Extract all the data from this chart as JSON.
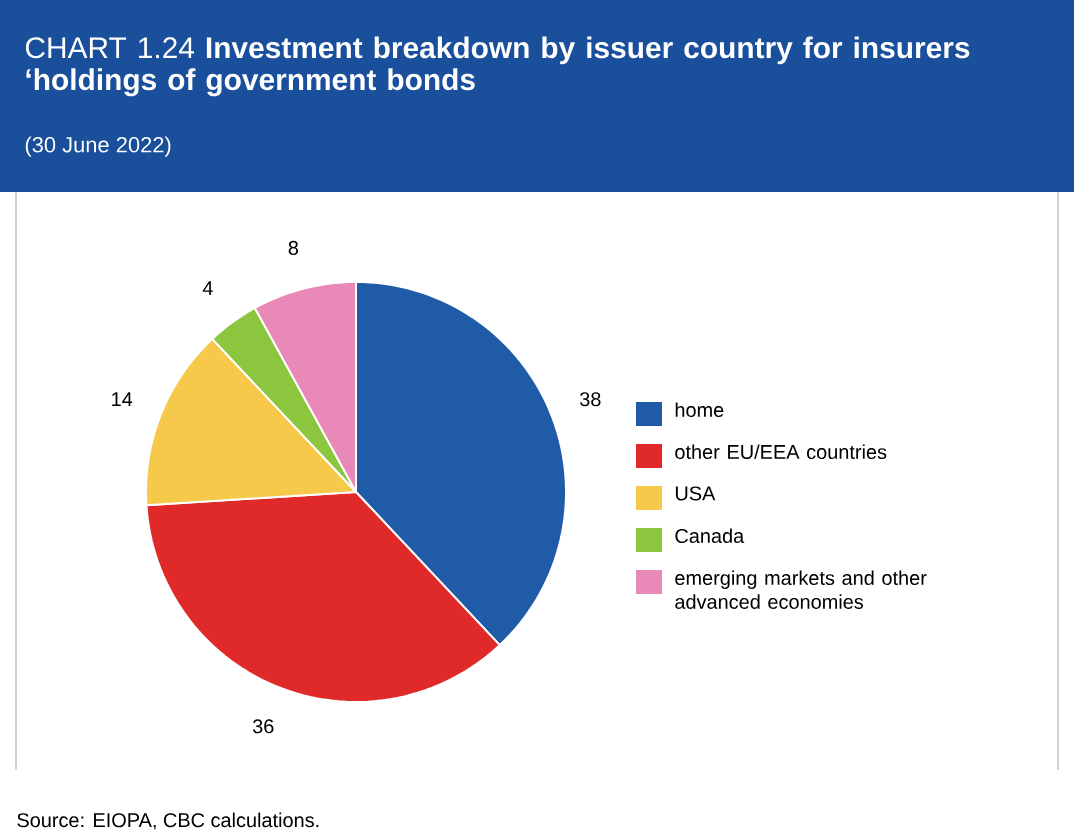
{
  "chart_data": {
    "type": "pie",
    "title": "CHART 1.24 **Investment breakdown by issuer country for insurers ‘holdings of government bonds**",
    "subtitle": "(30 June 2022)",
    "categories": [
      "home",
      "other EU/EEA countries",
      "USA",
      "Canada",
      "emerging markets and other advanced economies"
    ],
    "values": [
      38,
      36,
      14,
      4,
      8
    ],
    "colors": [
      "#1f5ba6",
      "#e02a2a",
      "#f6c94a",
      "#8cc63f",
      "#e889b8"
    ],
    "data_labels": true,
    "legend": "right",
    "annotations": [
      "Source: EIOPA, CBC calculations."
    ]
  }
}
